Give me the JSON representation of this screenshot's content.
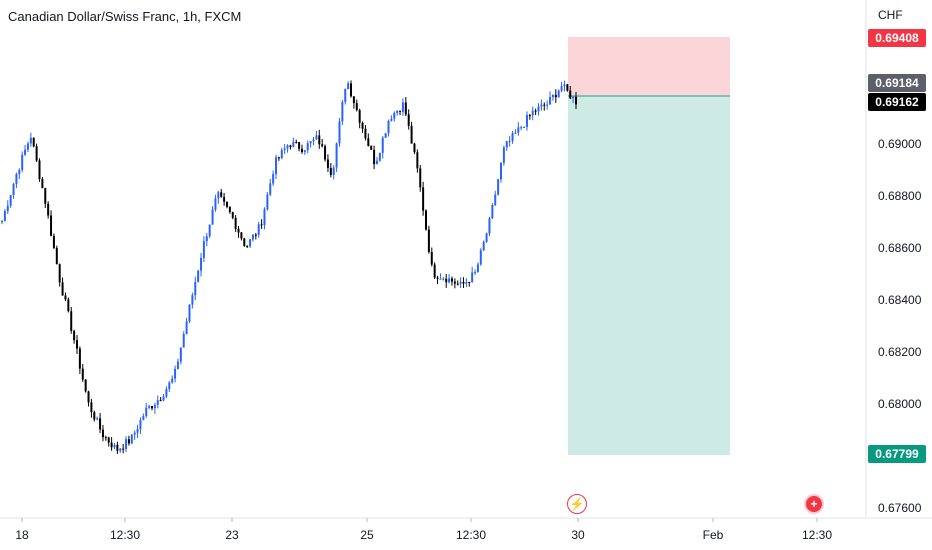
{
  "title": "Canadian Dollar/Swiss Franc, 1h, FXCM",
  "currency": "CHF",
  "colors": {
    "up": "#2962ff",
    "down": "#000000",
    "stop": "#f23645",
    "target": "#089981",
    "stop_zone": "#fcd5d8",
    "target_zone": "#cdeae5"
  },
  "price_tags": {
    "stop": "0.69408",
    "prev": "0.69184",
    "current": "0.69162",
    "target": "0.67799"
  },
  "chart_data": {
    "type": "candlestick",
    "title": "Canadian Dollar/Swiss Franc, 1h, FXCM",
    "ylabel": "CHF",
    "ylim": [
      0.675,
      0.6965
    ],
    "y_ticks": [
      "0.69000",
      "0.68800",
      "0.68600",
      "0.68400",
      "0.68200",
      "0.68000",
      "0.67600"
    ],
    "x_ticks": [
      "18",
      "12:30",
      "23",
      "25",
      "12:30",
      "30",
      "Feb",
      "12:30"
    ],
    "position": {
      "type": "short",
      "entry": 0.6916,
      "stop": 0.69408,
      "target": 0.67799
    },
    "anchors": [
      0.687,
      0.6888,
      0.6903,
      0.6878,
      0.6848,
      0.6825,
      0.68,
      0.6788,
      0.6782,
      0.6786,
      0.6797,
      0.6802,
      0.681,
      0.6835,
      0.686,
      0.688,
      0.6872,
      0.686,
      0.6868,
      0.6892,
      0.69,
      0.6898,
      0.6902,
      0.6888,
      0.6925,
      0.6908,
      0.6892,
      0.691,
      0.6915,
      0.6888,
      0.685,
      0.6848,
      0.6845,
      0.685,
      0.687,
      0.6898,
      0.6905,
      0.6912,
      0.6915,
      0.6922,
      0.6916
    ]
  },
  "events": {
    "flash": "⚡",
    "plus": "+"
  }
}
